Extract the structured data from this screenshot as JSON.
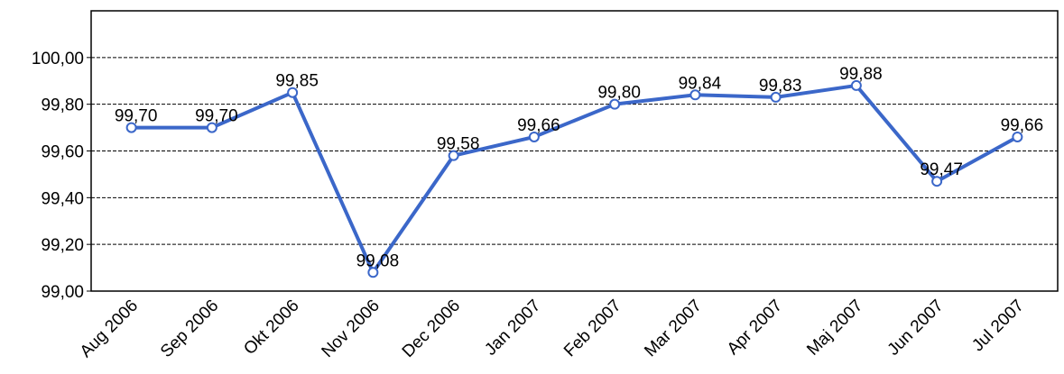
{
  "chart_data": {
    "type": "line",
    "categories": [
      "Aug 2006",
      "Sep 2006",
      "Okt 2006",
      "Nov 2006",
      "Dec 2006",
      "Jan 2007",
      "Feb 2007",
      "Mar 2007",
      "Apr 2007",
      "Maj 2007",
      "Jun 2007",
      "Jul 2007"
    ],
    "values": [
      99.7,
      99.7,
      99.85,
      99.08,
      99.58,
      99.66,
      99.8,
      99.84,
      99.83,
      99.88,
      99.47,
      99.66
    ],
    "value_labels": [
      "99,70",
      "99,70",
      "99,85",
      "99,08",
      "99,58",
      "99,66",
      "99,80",
      "99,84",
      "99,83",
      "99,88",
      "99,47",
      "99,66"
    ],
    "color": "#3b67c9",
    "ylim": [
      99,
      100.2
    ],
    "yticks": [
      {
        "value": 99,
        "label": "99,00"
      },
      {
        "value": 99.2,
        "label": "99,20"
      },
      {
        "value": 99.4,
        "label": "99,40"
      },
      {
        "value": 99.6,
        "label": "99,60"
      },
      {
        "value": 99.8,
        "label": "99,80"
      },
      {
        "value": 100,
        "label": "100,00"
      }
    ],
    "grid": true
  }
}
